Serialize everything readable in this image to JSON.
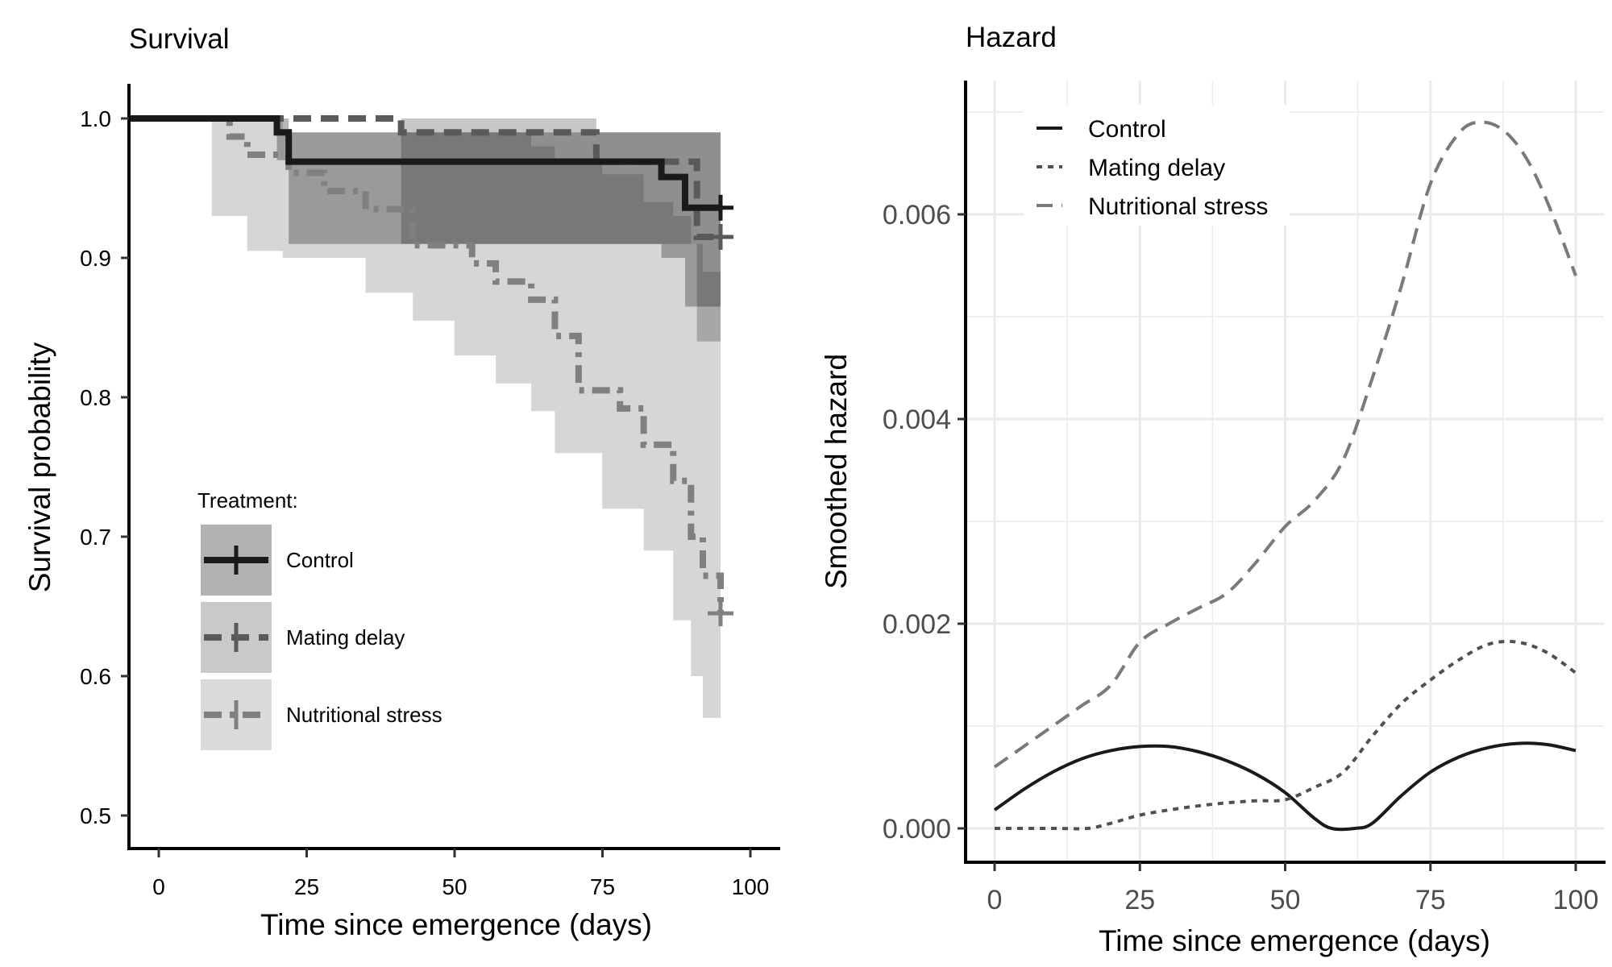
{
  "chart_data": [
    {
      "type": "line",
      "title": "Survival",
      "xlabel": "Time since emergence (days)",
      "ylabel": "Survival probability",
      "xlim": [
        0,
        100
      ],
      "ylim": [
        0.5,
        1.0
      ],
      "x_ticks": [
        "0",
        "25",
        "50",
        "75",
        "100"
      ],
      "y_ticks": [
        "0.5",
        "0.6",
        "0.7",
        "0.8",
        "0.9",
        "1.0"
      ],
      "legend_title": "Treatment:",
      "legend_position": "bottom-left",
      "grid": false,
      "series": [
        {
          "name": "Control",
          "color": "#1a1a1a",
          "dash": "solid",
          "step": [
            [
              0,
              1.0
            ],
            [
              25,
              1.0
            ],
            [
              25,
              0.99
            ],
            [
              27,
              0.99
            ],
            [
              27,
              0.969
            ],
            [
              90,
              0.969
            ],
            [
              90,
              0.958
            ],
            [
              94,
              0.958
            ],
            [
              94,
              0.936
            ],
            [
              100,
              0.936
            ]
          ],
          "band": [
            [
              0,
              1.0,
              1.0
            ],
            [
              25,
              0.97,
              1.0
            ],
            [
              27,
              0.91,
              0.99
            ],
            [
              80,
              0.91,
              0.99
            ],
            [
              90,
              0.9,
              0.99
            ],
            [
              94,
              0.865,
              0.99
            ],
            [
              100,
              0.865,
              0.99
            ]
          ],
          "censor": [
            [
              100,
              0.936
            ]
          ]
        },
        {
          "name": "Mating delay",
          "color": "#5a5a5a",
          "dash": "dashed",
          "step": [
            [
              0,
              1.0
            ],
            [
              46,
              1.0
            ],
            [
              46,
              0.99
            ],
            [
              79,
              0.99
            ],
            [
              79,
              0.969
            ],
            [
              96,
              0.969
            ],
            [
              96,
              0.915
            ],
            [
              100,
              0.915
            ]
          ],
          "band": [
            [
              0,
              1.0,
              1.0
            ],
            [
              46,
              0.91,
              1.0
            ],
            [
              79,
              0.91,
              0.99
            ],
            [
              96,
              0.84,
              0.99
            ],
            [
              100,
              0.84,
              0.99
            ]
          ],
          "censor": [
            [
              100,
              0.915
            ]
          ]
        },
        {
          "name": "Nutritional stress",
          "color": "#808080",
          "dash": "dashdot",
          "step": [
            [
              0,
              1.0
            ],
            [
              17,
              1.0
            ],
            [
              17,
              0.987
            ],
            [
              20,
              0.987
            ],
            [
              20,
              0.974
            ],
            [
              27,
              0.974
            ],
            [
              27,
              0.961
            ],
            [
              33,
              0.961
            ],
            [
              33,
              0.948
            ],
            [
              40,
              0.948
            ],
            [
              40,
              0.935
            ],
            [
              48,
              0.935
            ],
            [
              48,
              0.909
            ],
            [
              58,
              0.909
            ],
            [
              58,
              0.896
            ],
            [
              62,
              0.896
            ],
            [
              62,
              0.883
            ],
            [
              68,
              0.883
            ],
            [
              68,
              0.87
            ],
            [
              72,
              0.87
            ],
            [
              72,
              0.844
            ],
            [
              76,
              0.844
            ],
            [
              76,
              0.805
            ],
            [
              83,
              0.805
            ],
            [
              83,
              0.792
            ],
            [
              87,
              0.792
            ],
            [
              87,
              0.766
            ],
            [
              92,
              0.766
            ],
            [
              92,
              0.74
            ],
            [
              95,
              0.74
            ],
            [
              95,
              0.7
            ],
            [
              97,
              0.7
            ],
            [
              97,
              0.672
            ],
            [
              100,
              0.672
            ],
            [
              100,
              0.645
            ]
          ],
          "band": [
            [
              0,
              1.0,
              1.0
            ],
            [
              14,
              0.93,
              1.0
            ],
            [
              20,
              0.905,
              1.0
            ],
            [
              26,
              0.9,
              0.99
            ],
            [
              40,
              0.875,
              0.99
            ],
            [
              48,
              0.855,
              0.99
            ],
            [
              55,
              0.83,
              0.99
            ],
            [
              62,
              0.81,
              0.99
            ],
            [
              68,
              0.79,
              0.98
            ],
            [
              72,
              0.76,
              0.97
            ],
            [
              80,
              0.72,
              0.96
            ],
            [
              87,
              0.69,
              0.94
            ],
            [
              92,
              0.64,
              0.93
            ],
            [
              95,
              0.6,
              0.91
            ],
            [
              97,
              0.57,
              0.89
            ],
            [
              100,
              0.54,
              0.87
            ]
          ],
          "censor": [
            [
              100,
              0.645
            ]
          ]
        }
      ]
    },
    {
      "type": "line",
      "title": "Hazard",
      "xlabel": "Time since emergence (days)",
      "ylabel": "Smoothed hazard",
      "xlim": [
        0,
        100
      ],
      "ylim": [
        0,
        0.007
      ],
      "x_ticks": [
        "0",
        "25",
        "50",
        "75",
        "100"
      ],
      "y_ticks": [
        "0.000",
        "0.002",
        "0.004",
        "0.006"
      ],
      "legend_position": "top-left",
      "grid": true,
      "series": [
        {
          "name": "Control",
          "color": "#1a1a1a",
          "dash": "solid",
          "x": [
            0,
            5,
            10,
            15,
            20,
            25,
            30,
            35,
            40,
            45,
            50,
            55,
            58,
            62,
            65,
            70,
            75,
            80,
            85,
            90,
            95,
            100
          ],
          "y": [
            0.00018,
            0.00038,
            0.00055,
            0.00068,
            0.00076,
            0.0008,
            0.0008,
            0.00075,
            0.00066,
            0.00053,
            0.00035,
            0.0001,
            0.0,
            0.0,
            5e-05,
            0.00032,
            0.00055,
            0.0007,
            0.00079,
            0.00083,
            0.00082,
            0.00076
          ]
        },
        {
          "name": "Mating delay",
          "color": "#505050",
          "dash": "dotted",
          "x": [
            0,
            10,
            16,
            20,
            25,
            30,
            35,
            40,
            45,
            50,
            55,
            60,
            65,
            70,
            75,
            80,
            85,
            90,
            95,
            100
          ],
          "y": [
            0.0,
            0.0,
            0.0,
            5e-05,
            0.00013,
            0.00018,
            0.00022,
            0.00025,
            0.00027,
            0.00028,
            0.0004,
            0.00055,
            0.0009,
            0.00122,
            0.00145,
            0.00165,
            0.0018,
            0.00182,
            0.00172,
            0.00152
          ]
        },
        {
          "name": "Nutritional stress",
          "color": "#7a7a7a",
          "dash": "dashed",
          "x": [
            0,
            5,
            10,
            15,
            20,
            25,
            30,
            35,
            40,
            45,
            50,
            55,
            60,
            65,
            70,
            75,
            80,
            84,
            88,
            92,
            96,
            100
          ],
          "y": [
            0.0006,
            0.0008,
            0.001,
            0.0012,
            0.0014,
            0.00182,
            0.002,
            0.00215,
            0.0023,
            0.0026,
            0.00295,
            0.0032,
            0.0036,
            0.0044,
            0.0053,
            0.0063,
            0.0068,
            0.0069,
            0.0068,
            0.0065,
            0.006,
            0.0054
          ]
        }
      ]
    }
  ]
}
